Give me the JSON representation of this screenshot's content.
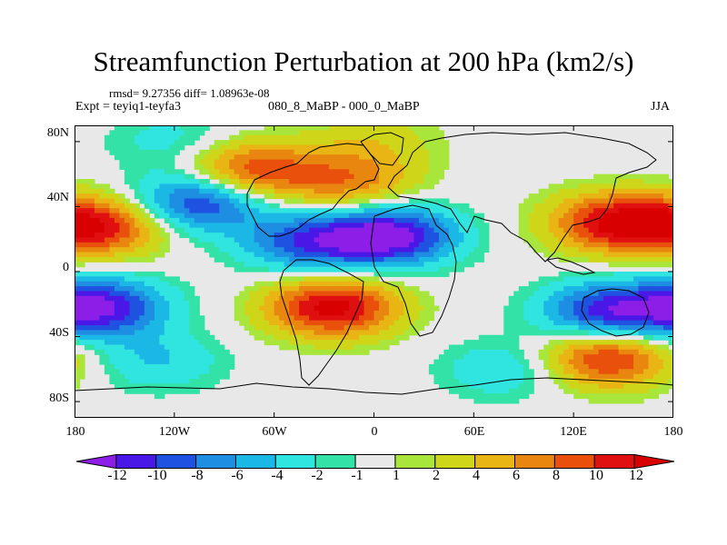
{
  "title": "Streamfunction Perturbation at 200 hPa (km2/s)",
  "stats_line": "rmsd= 9.27356 diff= 1.08963e-08",
  "experiment": "Expt = teyiq1-teyfa3",
  "period": "080_8_MaBP - 000_0_MaBP",
  "season": "JJA",
  "chart_data": {
    "type": "heatmap",
    "projection": "cylindrical-equidistant",
    "x_ticks": [
      "180",
      "120W",
      "60W",
      "0",
      "60E",
      "120E",
      "180"
    ],
    "x_tick_lon": [
      -180,
      -120,
      -60,
      0,
      60,
      120,
      180
    ],
    "y_ticks": [
      "80N",
      "40N",
      "0",
      "40S",
      "80S"
    ],
    "y_tick_lat": [
      80,
      40,
      0,
      -40,
      -80
    ],
    "xlim": [
      -180,
      180
    ],
    "ylim": [
      -90,
      90
    ],
    "colorbar_labels": [
      "-12",
      "-10",
      "-8",
      "-6",
      "-4",
      "-2",
      "-1",
      "1",
      "2",
      "4",
      "6",
      "8",
      "10",
      "12"
    ],
    "colorbar_colors": [
      "#8c1ee8",
      "#4a18e6",
      "#1f52e0",
      "#1e8ee2",
      "#1bb8e6",
      "#30e4e0",
      "#33e2a6",
      "#e8e8e8",
      "#a8e63c",
      "#cfd61a",
      "#e8b514",
      "#e8860f",
      "#e8500c",
      "#e01010",
      "#d80000"
    ],
    "anomaly_centers": [
      {
        "lon": -165,
        "lat": 28,
        "value": 11
      },
      {
        "lon": -105,
        "lat": 43,
        "value": -11
      },
      {
        "lon": -75,
        "lat": 62,
        "value": 10
      },
      {
        "lon": -15,
        "lat": 55,
        "value": 7
      },
      {
        "lon": 145,
        "lat": 30,
        "value": 12
      },
      {
        "lon": 10,
        "lat": 22,
        "value": -13
      },
      {
        "lon": -40,
        "lat": 18,
        "value": -9
      },
      {
        "lon": -25,
        "lat": -22,
        "value": 13
      },
      {
        "lon": -165,
        "lat": -22,
        "value": -12
      },
      {
        "lon": 140,
        "lat": -25,
        "value": -11
      },
      {
        "lon": 140,
        "lat": -53,
        "value": 11
      },
      {
        "lon": 0,
        "lat": 80,
        "value": 3
      },
      {
        "lon": -120,
        "lat": 80,
        "value": -3
      },
      {
        "lon": 80,
        "lat": -60,
        "value": -4
      },
      {
        "lon": -130,
        "lat": -55,
        "value": -4
      }
    ]
  }
}
